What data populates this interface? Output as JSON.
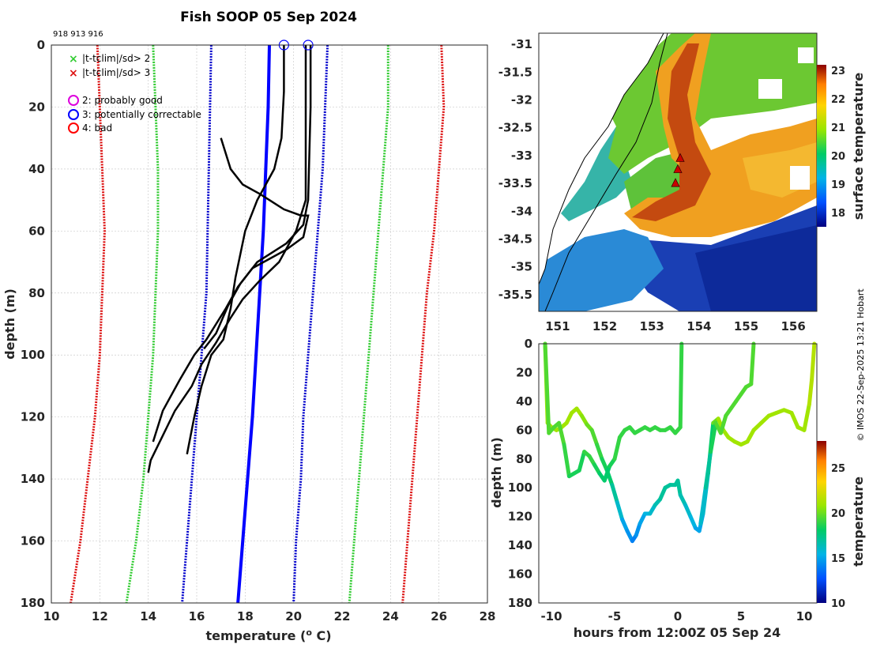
{
  "title": "Fish SOOP 05 Sep 2024",
  "station_ids": "918 913 916",
  "credit": "© IMOS 22-Sep-2025 13:21 Hobart",
  "colors": {
    "profile": "#000000",
    "clim_mean": "#0000ff",
    "sd2": "#33cc33",
    "sd3": "#dd1111",
    "sd1": "#0000cc",
    "flag2": "#dd00dd",
    "flag3": "#0000ff",
    "flag4": "#ff0000",
    "marker": "#cc0000"
  },
  "legend": {
    "sd2": "|t-tclim|/sd> 2",
    "sd3": "|t-tclim|/sd> 3",
    "flag2": "2: probably good",
    "flag3": "3: potentially correctable",
    "flag4": "4: bad"
  },
  "chart_data": [
    {
      "type": "line",
      "name": "temperature-profiles",
      "xlabel": "temperature (° C)",
      "ylabel": "depth (m)",
      "xlim": [
        10,
        28
      ],
      "ylim": [
        0,
        180
      ],
      "y_reversed": true,
      "xticks": [
        10,
        12,
        14,
        16,
        18,
        20,
        22,
        24,
        26,
        28
      ],
      "yticks": [
        0,
        20,
        40,
        60,
        80,
        100,
        120,
        140,
        160,
        180
      ],
      "grid": true,
      "climatology": {
        "depth": [
          0,
          20,
          40,
          60,
          80,
          100,
          120,
          140,
          160,
          180
        ],
        "mean": [
          19.0,
          18.95,
          18.85,
          18.75,
          18.6,
          18.45,
          18.3,
          18.1,
          17.9,
          17.7
        ],
        "minus1sd": [
          16.6,
          16.55,
          16.5,
          16.45,
          16.4,
          16.2,
          16.0,
          15.8,
          15.6,
          15.4
        ],
        "plus1sd": [
          21.4,
          21.3,
          21.2,
          21.0,
          20.8,
          20.6,
          20.4,
          20.3,
          20.1,
          20.0
        ],
        "minus2sd": [
          14.2,
          14.3,
          14.4,
          14.4,
          14.3,
          14.2,
          14.0,
          13.8,
          13.5,
          13.1
        ],
        "plus2sd": [
          23.9,
          23.9,
          23.7,
          23.5,
          23.3,
          23.1,
          22.9,
          22.7,
          22.5,
          22.3
        ],
        "minus3sd": [
          11.9,
          12.0,
          12.1,
          12.2,
          12.1,
          12.0,
          11.8,
          11.5,
          11.2,
          10.8
        ],
        "plus3sd": [
          26.1,
          26.2,
          26.0,
          25.8,
          25.5,
          25.3,
          25.1,
          24.9,
          24.7,
          24.5
        ]
      },
      "series": [
        {
          "name": "918",
          "temp": [
            20.5,
            20.5,
            20.5,
            20.5,
            20.3,
            20.1,
            19.4,
            18.6,
            17.9,
            17.4,
            16.8,
            16.2,
            15.8,
            15.1,
            14.6,
            14.1,
            14.0
          ],
          "depth": [
            0,
            10,
            30,
            50,
            55,
            60,
            70,
            76,
            82,
            88,
            96,
            103,
            110,
            118,
            126,
            134,
            138
          ]
        },
        {
          "name": "913",
          "temp": [
            19.6,
            19.6,
            19.5,
            19.2,
            18.5,
            18.0,
            17.6,
            17.4,
            17.1,
            16.6,
            16.2,
            15.9,
            15.7,
            15.6
          ],
          "depth": [
            0,
            15,
            30,
            40,
            50,
            60,
            75,
            85,
            95,
            100,
            110,
            120,
            128,
            132
          ]
        },
        {
          "name": "916",
          "temp": [
            20.7,
            20.7,
            20.6,
            20.4,
            19.7,
            18.5,
            17.7,
            17.2,
            16.4,
            15.9,
            15.3,
            14.6,
            14.2
          ],
          "depth": [
            0,
            20,
            50,
            58,
            64,
            70,
            78,
            85,
            95,
            100,
            108,
            118,
            128
          ]
        },
        {
          "name": "upper-918",
          "temp": [
            17.0,
            17.4,
            17.9,
            18.6,
            19.2,
            19.6,
            20.3,
            20.6,
            20.4,
            19.7,
            19.0,
            18.3,
            17.8,
            17.3,
            16.8,
            16.3
          ],
          "depth": [
            30,
            40,
            45,
            48,
            51,
            53,
            55,
            55,
            62,
            66,
            69,
            72,
            77,
            84,
            93,
            98
          ]
        }
      ],
      "flag_markers": [
        {
          "temp": 19.6,
          "depth": 0
        },
        {
          "temp": 20.6,
          "depth": 0
        }
      ]
    },
    {
      "type": "heatmap",
      "name": "surface-temperature-map",
      "xlim": [
        150.6,
        156.5
      ],
      "ylim": [
        -35.8,
        -30.8
      ],
      "xticks": [
        151,
        152,
        153,
        154,
        155,
        156
      ],
      "yticks": [
        -31,
        -31.5,
        -32,
        -32.5,
        -33,
        -33.5,
        -34,
        -34.5,
        -35,
        -35.5
      ],
      "colorbar_label": "surface temperature",
      "colorbar_ticks": [
        18,
        19,
        20,
        21,
        22,
        23
      ],
      "clim": [
        17.5,
        23.2
      ],
      "stations": [
        {
          "lon": 153.6,
          "lat": -33.05
        },
        {
          "lon": 153.55,
          "lat": -33.25
        },
        {
          "lon": 153.5,
          "lat": -33.5
        }
      ]
    },
    {
      "type": "line",
      "name": "depth-time-track",
      "xlabel": "hours from 12:00Z 05 Sep 24",
      "ylabel": "depth (m)",
      "xlim": [
        -11,
        11
      ],
      "ylim": [
        0,
        180
      ],
      "y_reversed": true,
      "xticks": [
        -10,
        -5,
        0,
        5,
        10
      ],
      "yticks": [
        0,
        20,
        40,
        60,
        80,
        100,
        120,
        140,
        160,
        180
      ],
      "colorbar_label": "temperature",
      "colorbar_ticks": [
        10,
        15,
        20,
        25
      ],
      "clim": [
        10,
        28
      ],
      "series": [
        {
          "name": "track-a",
          "hours": [
            -10.5,
            -10.3,
            -10.0,
            -9.6,
            -9.2,
            -8.8,
            -8.4,
            -8.0,
            -7.6,
            -7.2,
            -6.8,
            -6.4,
            -6.0,
            -5.6,
            -5.2,
            -4.8,
            -4.4,
            -4.0,
            -3.6,
            -3.3,
            -3.0,
            -2.6,
            -2.2,
            -1.8,
            -1.4,
            -1.0,
            -0.6,
            -0.2,
            0.0,
            0.2,
            0.6,
            1.0,
            1.4,
            1.7,
            2.0,
            2.4,
            2.8,
            3.2,
            3.6,
            4.0,
            4.5,
            5.0,
            5.5,
            6.0,
            6.6,
            7.2,
            7.8,
            8.4,
            9.0,
            9.5,
            10.0,
            10.4,
            10.6,
            10.8
          ],
          "depth": [
            0,
            55,
            58,
            60,
            58,
            55,
            48,
            45,
            50,
            56,
            60,
            70,
            80,
            88,
            98,
            110,
            122,
            130,
            137,
            133,
            125,
            118,
            118,
            112,
            108,
            100,
            98,
            98,
            95,
            105,
            112,
            120,
            128,
            130,
            118,
            90,
            55,
            52,
            60,
            65,
            68,
            70,
            68,
            60,
            55,
            50,
            48,
            46,
            48,
            58,
            60,
            42,
            25,
            0
          ],
          "temp": [
            21,
            21,
            21,
            21,
            21,
            21,
            21,
            21,
            20.5,
            20,
            19.5,
            19,
            18.5,
            18,
            17,
            16,
            15,
            14.5,
            14,
            14.5,
            15,
            15.5,
            16,
            16.5,
            17,
            17,
            17,
            17,
            17,
            16.5,
            16,
            15.5,
            15,
            15,
            16,
            18,
            20,
            21,
            21,
            21,
            21,
            21,
            21,
            21,
            21,
            21,
            21,
            21,
            21,
            21,
            21,
            21.5,
            21.5,
            21.5
          ]
        },
        {
          "name": "track-b",
          "hours": [
            -10.5,
            -10.2,
            -9.8,
            -9.4,
            -9.0,
            -8.6,
            -8.2,
            -7.8,
            -7.4,
            -7.0,
            -6.6,
            -6.2,
            -5.8,
            -5.4,
            -5.0,
            -4.6,
            -4.2,
            -3.8,
            -3.4,
            -3.0,
            -2.6,
            -2.2,
            -1.8,
            -1.4,
            -1.0,
            -0.6,
            -0.2,
            0.0,
            0.2,
            0.3
          ],
          "depth": [
            0,
            62,
            58,
            55,
            70,
            92,
            90,
            88,
            75,
            78,
            84,
            90,
            95,
            85,
            80,
            65,
            60,
            58,
            62,
            60,
            58,
            60,
            58,
            60,
            60,
            58,
            62,
            60,
            58,
            0
          ],
          "temp": [
            19.5,
            19.5,
            19.5,
            19.5,
            19,
            18.5,
            18.5,
            18.5,
            19,
            19,
            18.5,
            18,
            18,
            18.5,
            19,
            19,
            19,
            19,
            19,
            19,
            19,
            19,
            19,
            19,
            19,
            19,
            19,
            19,
            19,
            19
          ]
        },
        {
          "name": "track-c",
          "hours": [
            1.8,
            2.2,
            2.6,
            3.0,
            3.4,
            3.8,
            4.2,
            4.6,
            5.0,
            5.4,
            5.8,
            6.0
          ],
          "depth": [
            125,
            100,
            75,
            55,
            62,
            50,
            45,
            40,
            35,
            30,
            28,
            0
          ],
          "temp": [
            16,
            17,
            18.5,
            19.5,
            19.5,
            19.5,
            19.5,
            19.5,
            19.5,
            19.5,
            19.5,
            19.5
          ]
        }
      ]
    }
  ]
}
